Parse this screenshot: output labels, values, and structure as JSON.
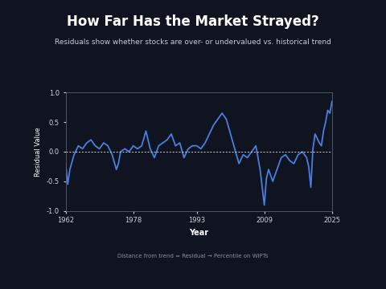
{
  "chart_data": {
    "type": "line",
    "title": "How Far Has the Market Strayed?",
    "subtitle": "Residuals show whether stocks are over- or undervalued vs. historical trend",
    "x_label": "Year",
    "y_label": "Residual Value",
    "footnote": "Distance from trend = Residual → Percentile on WIPTs",
    "color": "#4a7fe0",
    "x": [
      1962,
      1962.5,
      1963,
      1964,
      1965,
      1966,
      1967,
      1968,
      1969,
      1970,
      1971,
      1972,
      1973,
      1974,
      1974.5,
      1975,
      1976,
      1977,
      1978,
      1979,
      1980,
      1981,
      1982,
      1983,
      1984,
      1985,
      1986,
      1987,
      1988,
      1989,
      1990,
      1991,
      1992,
      1993,
      1994,
      1995,
      1996,
      1997,
      1998,
      1999,
      2000,
      2001,
      2002,
      2003,
      2004,
      2005,
      2006,
      2007,
      2008,
      2008.5,
      2009,
      2009.5,
      2010,
      2011,
      2012,
      2013,
      2014,
      2015,
      2016,
      2017,
      2018,
      2019,
      2019.5,
      2020,
      2020.5,
      2021,
      2022,
      2022.5,
      2023,
      2023.5,
      2024,
      2024.5,
      2025
    ],
    "values": [
      -0.2,
      -0.55,
      -0.3,
      -0.05,
      0.1,
      0.05,
      0.15,
      0.2,
      0.1,
      0.05,
      0.15,
      0.1,
      -0.05,
      -0.3,
      -0.2,
      0.0,
      0.05,
      0.0,
      0.1,
      0.05,
      0.1,
      0.35,
      0.05,
      -0.1,
      0.1,
      0.15,
      0.2,
      0.3,
      0.1,
      0.15,
      -0.1,
      0.05,
      0.1,
      0.1,
      0.05,
      0.15,
      0.3,
      0.45,
      0.55,
      0.65,
      0.55,
      0.3,
      0.05,
      -0.2,
      -0.05,
      -0.1,
      0.0,
      0.1,
      -0.3,
      -0.6,
      -0.9,
      -0.45,
      -0.3,
      -0.5,
      -0.3,
      -0.1,
      -0.05,
      -0.15,
      -0.2,
      -0.05,
      0.0,
      -0.1,
      -0.25,
      -0.6,
      0.05,
      0.3,
      0.15,
      0.1,
      0.35,
      0.5,
      0.7,
      0.65,
      0.85
    ],
    "reference_y": 0.0,
    "xlim": [
      1962,
      2025
    ],
    "xticks": [
      1962,
      1978,
      1993,
      2009,
      2025
    ],
    "ylim": [
      -1.0,
      1.0
    ],
    "yticks": [
      -1.0,
      -0.5,
      0.0,
      0.5,
      1.0
    ],
    "grid": false
  }
}
